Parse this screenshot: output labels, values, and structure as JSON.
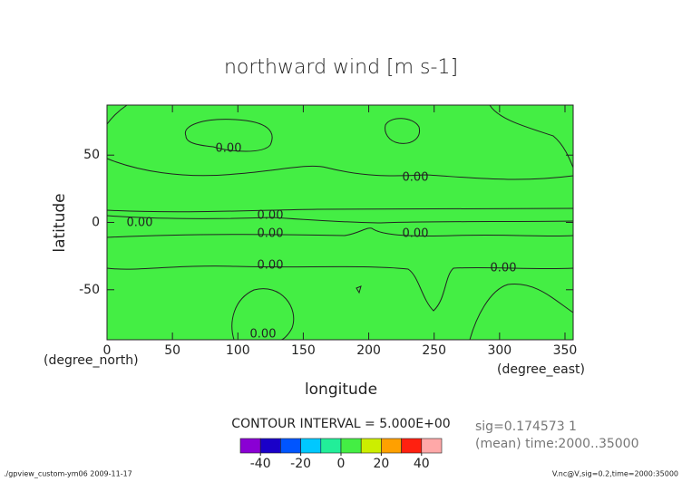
{
  "chart_data": {
    "type": "contour",
    "title": "northward wind [m s-1]",
    "xlabel": "longitude",
    "ylabel": "latitude",
    "xunit": "(degree_east)",
    "yunit": "(degree_north)",
    "xlim": [
      0,
      356.25
    ],
    "ylim": [
      -87.16,
      87.16
    ],
    "xticks": [
      0,
      50,
      100,
      150,
      200,
      250,
      300,
      350
    ],
    "yticks": [
      -50,
      0,
      50
    ],
    "fill_color": "#44ee44",
    "contour_labels": [
      "0.00",
      "0.00",
      "0.00",
      "0.00",
      "0.00",
      "0.00",
      "0.00",
      "0.00",
      "0.00",
      "0.00"
    ],
    "contour_interval": "CONTOUR INTERVAL = 5.000E+00",
    "info": [
      "sig=0.174573 1",
      "(mean) time:2000..35000"
    ],
    "colorbar": {
      "levels": [
        -50,
        -40,
        -30,
        -20,
        -10,
        0,
        10,
        20,
        30,
        40,
        50
      ],
      "colors": [
        "#8a00d4",
        "#1a00c8",
        "#0055ff",
        "#00c8ff",
        "#22ee99",
        "#44ee44",
        "#ccee00",
        "#ffa000",
        "#ff2010",
        "#ffa8a8"
      ],
      "ticks": [
        -40,
        -20,
        0,
        20,
        40
      ]
    },
    "footer_left": "./gpview_custom-ym06  2009-11-17",
    "footer_right": "V.nc@V,sig=0.2,time=2000:35000"
  }
}
